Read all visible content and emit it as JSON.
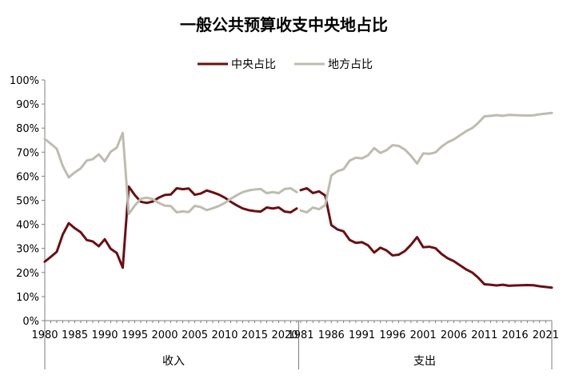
{
  "chart_data": {
    "type": "line",
    "title": "一般公共预算收支中央地占比",
    "legend_position": "top",
    "grid": false,
    "ylim": [
      0,
      100
    ],
    "y_ticks": [
      "0%",
      "10%",
      "20%",
      "30%",
      "40%",
      "50%",
      "60%",
      "70%",
      "80%",
      "90%",
      "100%"
    ],
    "legend": [
      {
        "name": "中央占比",
        "color": "#6b0f12"
      },
      {
        "name": "地方占比",
        "color": "#bebcb0"
      }
    ],
    "panels": [
      {
        "label": "收入",
        "x": [
          1980,
          1981,
          1982,
          1983,
          1984,
          1985,
          1986,
          1987,
          1988,
          1989,
          1990,
          1991,
          1992,
          1993,
          1994,
          1995,
          1996,
          1997,
          1998,
          1999,
          2000,
          2001,
          2002,
          2003,
          2004,
          2005,
          2006,
          2007,
          2008,
          2009,
          2010,
          2011,
          2012,
          2013,
          2014,
          2015,
          2016,
          2017,
          2018,
          2019,
          2020,
          2021,
          2022
        ],
        "x_tick_labels": [
          "1980",
          "1985",
          "1990",
          "1995",
          "2000",
          "2005",
          "2010",
          "2015",
          "2020"
        ],
        "series": [
          {
            "name": "中央占比",
            "values": [
              24.5,
              26.5,
              28.6,
              35.8,
              40.5,
              38.4,
              36.7,
              33.5,
              32.9,
              30.9,
              33.8,
              29.8,
              28.1,
              22.0,
              55.7,
              52.2,
              49.4,
              48.9,
              49.5,
              51.1,
              52.2,
              52.4,
              55.0,
              54.6,
              54.9,
              52.3,
              52.8,
              54.1,
              53.3,
              52.4,
              51.1,
              49.4,
              47.9,
              46.6,
              45.9,
              45.5,
              45.3,
              47.0,
              46.6,
              47.0,
              45.3,
              45.0,
              46.6
            ]
          },
          {
            "name": "地方占比",
            "values": [
              75.5,
              73.5,
              71.4,
              64.2,
              59.5,
              61.6,
              63.3,
              66.5,
              67.1,
              69.1,
              66.2,
              70.2,
              71.9,
              78.0,
              44.3,
              47.8,
              50.6,
              51.1,
              50.5,
              48.9,
              47.8,
              47.6,
              45.0,
              45.4,
              45.1,
              47.7,
              47.2,
              45.9,
              46.7,
              47.6,
              48.9,
              50.6,
              52.1,
              53.4,
              54.1,
              54.5,
              54.7,
              53.0,
              53.4,
              53.0,
              54.7,
              55.0,
              53.4
            ]
          }
        ]
      },
      {
        "label": "支出",
        "x": [
          1981,
          1982,
          1983,
          1984,
          1985,
          1986,
          1987,
          1988,
          1989,
          1990,
          1991,
          1992,
          1993,
          1994,
          1995,
          1996,
          1997,
          1998,
          1999,
          2000,
          2001,
          2002,
          2003,
          2004,
          2005,
          2006,
          2007,
          2008,
          2009,
          2010,
          2011,
          2012,
          2013,
          2014,
          2015,
          2016,
          2017,
          2018,
          2019,
          2020,
          2021,
          2022
        ],
        "x_tick_labels": [
          "1981",
          "1986",
          "1991",
          "1996",
          "2001",
          "2006",
          "2011",
          "2016",
          "2021"
        ],
        "series": [
          {
            "name": "中央占比",
            "values": [
              54.2,
              55.0,
              53.0,
              53.7,
              52.0,
              39.7,
              37.9,
              37.1,
              33.5,
              32.3,
              32.6,
              31.3,
              28.3,
              30.3,
              29.2,
              27.1,
              27.4,
              28.9,
              31.5,
              34.7,
              30.5,
              30.7,
              30.1,
              27.7,
              25.9,
              24.7,
              23.0,
              21.3,
              20.0,
              17.8,
              15.1,
              14.9,
              14.6,
              14.9,
              14.5,
              14.6,
              14.7,
              14.8,
              14.7,
              14.3,
              14.0,
              13.7
            ]
          },
          {
            "name": "地方占比",
            "values": [
              45.8,
              45.0,
              47.0,
              46.3,
              48.0,
              60.3,
              62.1,
              62.9,
              66.5,
              67.7,
              67.4,
              68.7,
              71.7,
              69.7,
              70.8,
              72.9,
              72.6,
              71.1,
              68.5,
              65.3,
              69.5,
              69.3,
              69.9,
              72.3,
              74.1,
              75.3,
              77.0,
              78.7,
              80.0,
              82.2,
              84.9,
              85.1,
              85.4,
              85.1,
              85.5,
              85.4,
              85.3,
              85.2,
              85.3,
              85.7,
              86.0,
              86.3
            ]
          }
        ]
      }
    ]
  }
}
